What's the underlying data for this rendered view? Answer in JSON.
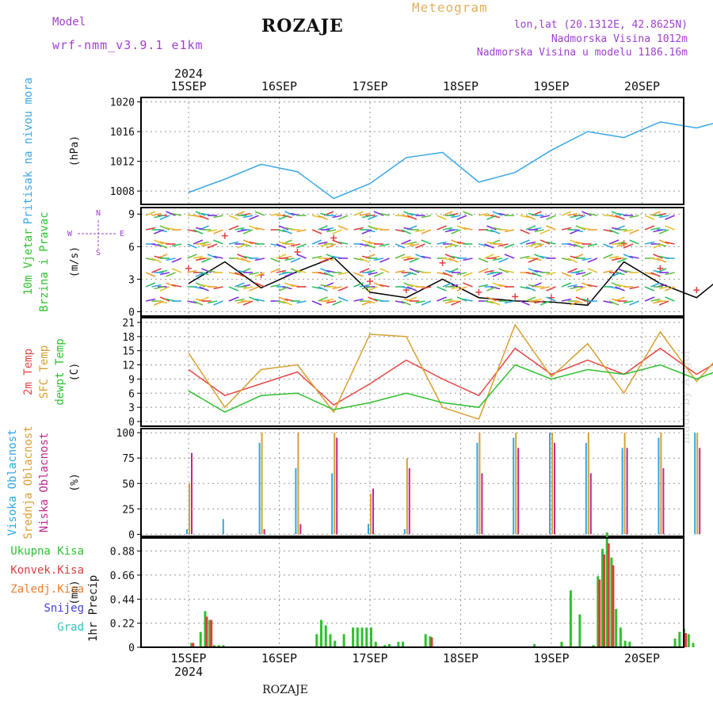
{
  "header": {
    "title": "ROZAJE",
    "model_label": "Model",
    "model_name": "wrf-nmm_v3.9.1 e1km",
    "meteogram": "Meteogram",
    "location_lines": [
      "lon,lat (20.1312E, 42.8625N)",
      "Nadmorska Visina 1012m",
      "Nadmorska Visina u modelu 1186.16m"
    ],
    "credit": "made by Angel",
    "footer": "ROZAJE"
  },
  "days": [
    "15SEP",
    "16SEP",
    "17SEP",
    "18SEP",
    "19SEP",
    "20SEP"
  ],
  "year": "2024",
  "colors": {
    "pressure": "#3aa8e8",
    "wind_speed": "#000000",
    "gust": "#e04040",
    "temp2m": "#e84848",
    "sfc": "#d8a030",
    "dewpt": "#30c030",
    "high_cloud": "#30a8e0",
    "mid_cloud": "#d8a030",
    "low_cloud": "#c02890",
    "total_precip": "#30c030",
    "conv_precip": "#d84040",
    "frozen": "#e88030",
    "snow": "#4040d0",
    "graupel": "#30c0c0",
    "label_purple": "#a040d0"
  },
  "chart_data": [
    {
      "panel": "pressure",
      "type": "line",
      "ylabel_lines": [
        "Pritisak na nivou mora"
      ],
      "unit": "(hPa)",
      "yticks": [
        1008,
        1012,
        1016,
        1020
      ],
      "ylim": [
        1006.2,
        1020.6
      ],
      "grid": true,
      "x_day": [
        0,
        0.4,
        0.8,
        1.2,
        1.6,
        2.0,
        2.4,
        2.8,
        3.2,
        3.6,
        4.0,
        4.4,
        4.8,
        5.2,
        5.6,
        6.0
      ],
      "series": [
        {
          "key": "pressure",
          "values": [
            1007.8,
            1009.6,
            1011.6,
            1010.6,
            1007.0,
            1009.0,
            1012.5,
            1013.2,
            1009.2,
            1010.5,
            1013.5,
            1016.0,
            1015.2,
            1017.3,
            1016.5,
            1017.8
          ]
        }
      ]
    },
    {
      "panel": "wind",
      "type": "line",
      "ylabel_lines": [
        "10m Vjetar",
        "Brzina i Pravac"
      ],
      "unit": "(m/s)",
      "compass": [
        "N",
        "W",
        "E",
        "S"
      ],
      "yticks": [
        0,
        3,
        6,
        9
      ],
      "ylim": [
        -0.4,
        9.6
      ],
      "grid": true,
      "x_day": [
        0,
        0.4,
        0.8,
        1.2,
        1.6,
        2.0,
        2.4,
        2.8,
        3.2,
        3.6,
        4.0,
        4.4,
        4.8,
        5.2,
        5.6,
        6.0
      ],
      "series": [
        {
          "key": "wind_speed",
          "values": [
            2.6,
            4.6,
            2.2,
            3.7,
            5.0,
            1.8,
            1.3,
            3.0,
            1.3,
            1.0,
            0.9,
            0.6,
            4.6,
            2.6,
            1.3,
            4.0
          ]
        },
        {
          "key": "gust",
          "style": "marker",
          "values": [
            4.0,
            7.0,
            3.4,
            5.5,
            6.8,
            2.8,
            2.0,
            4.5,
            1.8,
            1.4,
            1.3,
            1.0,
            6.3,
            4.0,
            2.0,
            6.0
          ]
        }
      ]
    },
    {
      "panel": "temperature",
      "type": "line",
      "ylabel_lines": [
        "2m Temp",
        "SFC Temp",
        "dewpt Temp"
      ],
      "unit": "(C)",
      "yticks": [
        0,
        3,
        6,
        9,
        12,
        15,
        18,
        21
      ],
      "ylim": [
        -1,
        22
      ],
      "grid": true,
      "x_day": [
        0,
        0.4,
        0.8,
        1.2,
        1.6,
        2.0,
        2.4,
        2.8,
        3.2,
        3.6,
        4.0,
        4.4,
        4.8,
        5.2,
        5.6,
        6.0
      ],
      "series": [
        {
          "key": "temp2m",
          "values": [
            11.0,
            5.5,
            8.0,
            10.5,
            3.5,
            8.0,
            13.0,
            9.0,
            5.5,
            15.5,
            10.0,
            13.0,
            10.0,
            15.5,
            10.0,
            14.5
          ]
        },
        {
          "key": "sfc",
          "values": [
            14.5,
            3.0,
            11.0,
            12.0,
            2.0,
            18.5,
            18.0,
            3.0,
            0.5,
            20.5,
            9.5,
            16.5,
            6.0,
            19.0,
            8.5,
            17.0
          ]
        },
        {
          "key": "dewpt",
          "values": [
            6.5,
            2.0,
            5.5,
            6.0,
            2.5,
            4.0,
            6.0,
            4.0,
            3.0,
            12.0,
            9.0,
            11.0,
            10.0,
            12.0,
            9.0,
            12.0
          ]
        }
      ]
    },
    {
      "panel": "cloud",
      "type": "bar",
      "ylabel_lines": [
        "Visoka Oblacnost",
        "Srednja Oblacnost",
        "Niska Oblacnost"
      ],
      "unit": "(%)",
      "yticks": [
        0,
        25,
        50,
        75,
        100
      ],
      "ylim": [
        -2,
        104
      ],
      "grid": true,
      "x_day": [
        0,
        0.4,
        0.8,
        1.2,
        1.6,
        2.0,
        2.4,
        2.8,
        3.2,
        3.6,
        4.0,
        4.4,
        4.8,
        5.2,
        5.6,
        6.0
      ],
      "series": [
        {
          "key": "high_cloud",
          "values": [
            5,
            15,
            90,
            65,
            60,
            10,
            5,
            0,
            90,
            95,
            100,
            90,
            85,
            95,
            100,
            45
          ]
        },
        {
          "key": "mid_cloud",
          "values": [
            50,
            0,
            100,
            100,
            100,
            40,
            75,
            0,
            100,
            100,
            100,
            100,
            100,
            100,
            100,
            95
          ]
        },
        {
          "key": "low_cloud",
          "values": [
            80,
            0,
            5,
            10,
            95,
            45,
            65,
            0,
            60,
            85,
            90,
            60,
            85,
            65,
            85,
            55
          ]
        }
      ]
    },
    {
      "panel": "precip",
      "type": "bar",
      "ylabel_lines": [
        "1hr Precip"
      ],
      "unit": "(mm)",
      "legend": [
        "Ukupna Kisa",
        "Konvek.Kisa",
        "Zaledj.Kisa",
        "Snijeg",
        "Grad"
      ],
      "yticks": [
        0,
        0.22,
        0.44,
        0.66,
        0.88
      ],
      "ylim": [
        0,
        1.0
      ],
      "grid": true,
      "series": [
        {
          "key": "total_precip",
          "x_day": [
            0.02,
            0.12,
            0.17,
            0.22,
            0.27,
            0.32,
            0.37,
            1.4,
            1.45,
            1.5,
            1.55,
            1.6,
            1.7,
            1.8,
            1.85,
            1.9,
            1.95,
            2.0,
            2.05,
            2.15,
            2.2,
            2.3,
            2.35,
            2.6,
            2.65,
            3.8,
            4.1,
            4.2,
            4.3,
            4.45,
            4.5,
            4.55,
            4.6,
            4.65,
            4.7,
            4.75,
            4.8,
            4.85,
            5.35,
            5.4,
            5.45,
            5.5,
            5.55,
            6.15,
            6.2,
            6.25,
            6.3,
            6.35,
            6.4
          ],
          "values": [
            0.04,
            0.14,
            0.33,
            0.25,
            0.02,
            0.02,
            0.02,
            0.12,
            0.25,
            0.2,
            0.12,
            0.06,
            0.12,
            0.18,
            0.18,
            0.18,
            0.18,
            0.18,
            0.05,
            0.02,
            0.03,
            0.05,
            0.05,
            0.12,
            0.1,
            0.03,
            0.05,
            0.52,
            0.3,
            0.02,
            0.65,
            0.9,
            1.05,
            0.82,
            0.35,
            0.18,
            0.06,
            0.05,
            0.08,
            0.14,
            0.17,
            0.12,
            0.04,
            0.12,
            0.33,
            0.64,
            0.42,
            0.4,
            0.25
          ]
        },
        {
          "key": "conv_precip",
          "x_day": [
            0.02,
            0.17,
            0.22,
            2.65,
            4.5,
            4.55,
            4.6,
            4.65,
            5.45,
            6.2,
            6.25,
            6.35,
            6.4
          ],
          "values": [
            0.04,
            0.28,
            0.25,
            0.09,
            0.62,
            0.85,
            0.95,
            0.75,
            0.13,
            0.3,
            0.5,
            0.4,
            0.25
          ]
        }
      ]
    }
  ]
}
